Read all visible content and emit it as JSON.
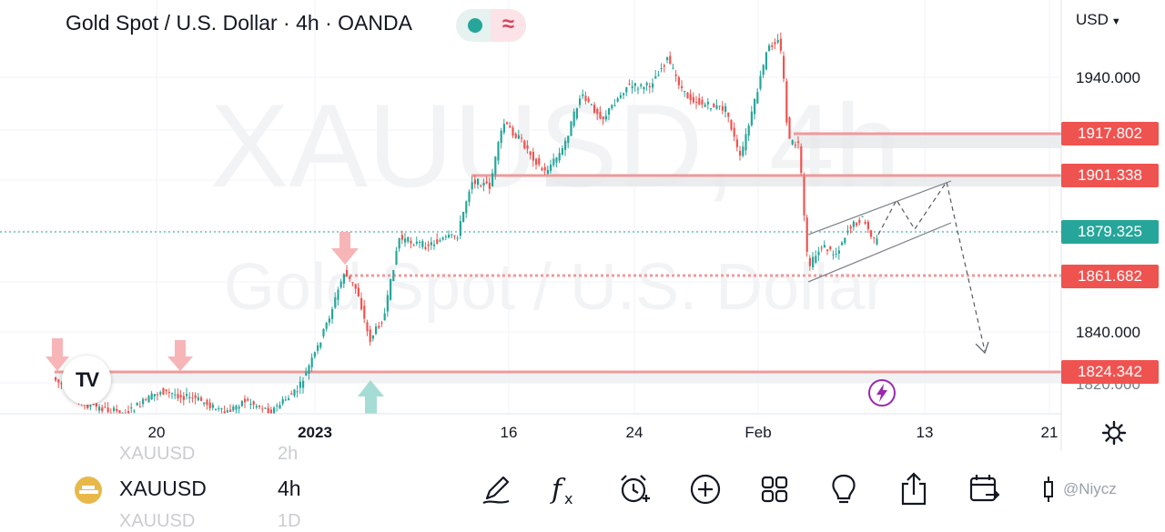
{
  "header": {
    "title": "Gold Spot / U.S. Dollar · 4h · OANDA",
    "currency": "USD",
    "status_glyph": "≈"
  },
  "watermark": {
    "line1": "XAUUSD, 4h",
    "line2": "Gold Spot / U.S. Dollar"
  },
  "price_axis": {
    "ticks": [
      "1940.000",
      "1840.000",
      "1820.000"
    ]
  },
  "levels": [
    {
      "value": "1917.802",
      "color": "#ef5350"
    },
    {
      "value": "1901.338",
      "color": "#ef5350"
    },
    {
      "value": "1879.325",
      "color": "#26a69a"
    },
    {
      "value": "1861.682",
      "color": "#ef5350"
    },
    {
      "value": "1824.342",
      "color": "#ef5350"
    }
  ],
  "time_axis": {
    "labels": [
      "20",
      "2023",
      "16",
      "24",
      "Feb",
      "13",
      "21"
    ]
  },
  "logo_text": "TV",
  "bottom": {
    "ghost_above_symbol": "XAUUSD",
    "ghost_above_tf": "2h",
    "symbol": "XAUUSD",
    "timeframe": "4h",
    "ghost_below_symbol": "XAUUSD",
    "ghost_below_tf": "1D",
    "watermark": "@Niycz",
    "tools": [
      "pen-icon",
      "formula-icon",
      "alarm-add-icon",
      "plus-circle-icon",
      "grid-icon",
      "lightbulb-icon",
      "share-icon",
      "calendar-replay-icon",
      "candles-icon"
    ]
  },
  "chart_data": {
    "type": "candlestick",
    "symbol": "XAUUSD",
    "interval": "4h",
    "y_scale": "linear",
    "last_price": 1879.325,
    "levels": [
      1917.802,
      1901.338,
      1879.325,
      1861.682,
      1824.342
    ],
    "colors": {
      "up": "#26a69a",
      "down": "#ef5350"
    }
  }
}
